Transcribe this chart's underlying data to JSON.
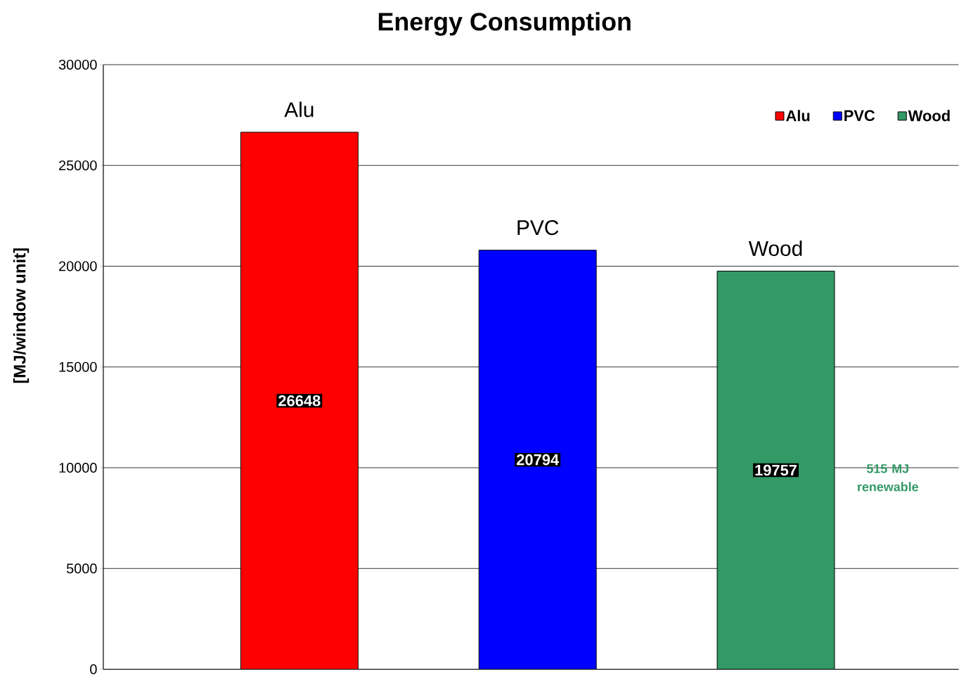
{
  "chart_data": {
    "type": "bar",
    "title": "Energy Consumption",
    "ylabel": "[MJ/window unit]",
    "categories": [
      null,
      null,
      null
    ],
    "series": [
      {
        "name": "Alu",
        "color": "#ff0000",
        "values": [
          26648,
          null,
          null
        ]
      },
      {
        "name": "PVC",
        "color": "#0000ff",
        "values": [
          null,
          20794,
          null
        ]
      },
      {
        "name": "Wood",
        "color": "#339966",
        "values": [
          null,
          null,
          19757
        ]
      }
    ],
    "ylim": [
      0,
      30000
    ],
    "yticks": [
      0,
      5000,
      10000,
      15000,
      20000,
      25000,
      30000
    ],
    "grid": "y",
    "legend": "top right",
    "data_labels": true,
    "annotations": [
      "515 MJ renewable"
    ]
  }
}
